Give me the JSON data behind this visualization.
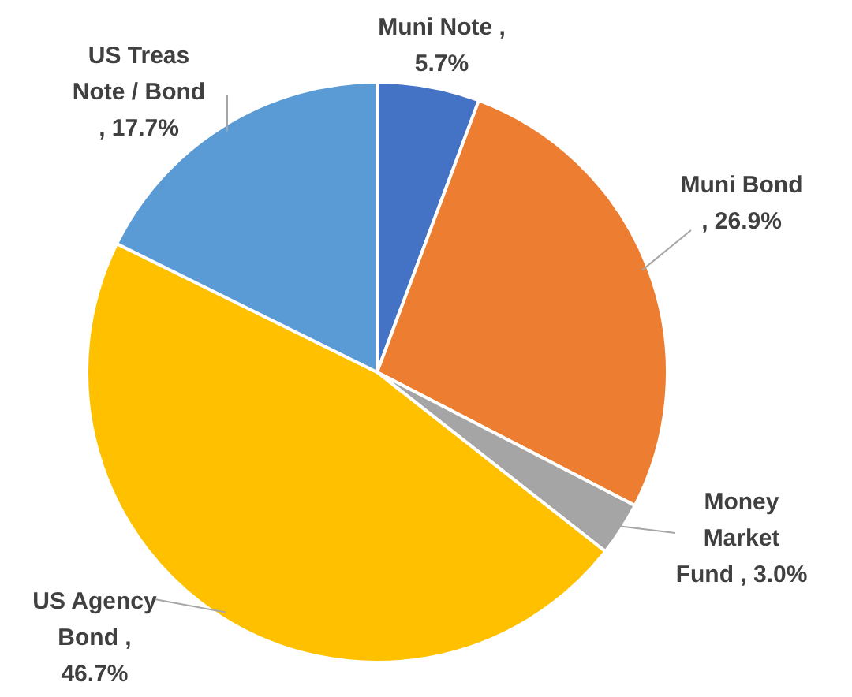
{
  "chart_data": {
    "type": "pie",
    "categories": [
      "Muni Note",
      "Muni Bond",
      "Money Market Fund",
      "US Agency Bond",
      "US Treas Note / Bond"
    ],
    "values": [
      5.7,
      26.9,
      3.0,
      46.7,
      17.7
    ],
    "value_labels": [
      ", 5.7%",
      ", 26.9%",
      ", 3.0%",
      ", 46.7%",
      ", 17.7%"
    ],
    "colors": [
      "#4472c4",
      "#ed7d31",
      "#a5a5a5",
      "#ffc000",
      "#5b9bd5"
    ]
  }
}
